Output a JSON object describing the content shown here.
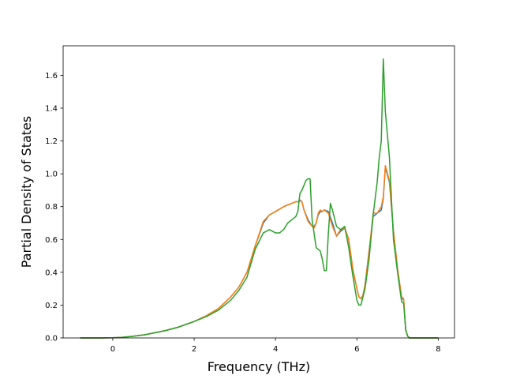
{
  "chart_data": {
    "type": "line",
    "xlabel": "Frequency (THz)",
    "ylabel": "Partial Density of States",
    "xlim": [
      -1.22,
      8.4
    ],
    "ylim": [
      0.0,
      1.78
    ],
    "xticks": [
      0,
      2,
      4,
      6,
      8
    ],
    "yticks": [
      0.0,
      0.2,
      0.4,
      0.6,
      0.8,
      1.0,
      1.2,
      1.4,
      1.6
    ],
    "xtick_labels": [
      "0",
      "2",
      "4",
      "6",
      "8"
    ],
    "ytick_labels": [
      "0.0",
      "0.2",
      "0.4",
      "0.6",
      "0.8",
      "1.0",
      "1.2",
      "1.4",
      "1.6"
    ],
    "grid": false,
    "series": [
      {
        "color": "#1f77b4",
        "x": [
          -0.8,
          -0.4,
          0.0,
          0.2,
          0.5,
          0.8,
          1.0,
          1.3,
          1.6,
          2.0,
          2.3,
          2.6,
          2.9,
          3.1,
          3.3,
          3.5,
          3.7,
          3.85,
          4.0,
          4.2,
          4.3,
          4.4,
          4.5,
          4.55,
          4.6,
          4.65,
          4.7,
          4.8,
          4.9,
          4.95,
          5.0,
          5.05,
          5.1,
          5.15,
          5.2,
          5.3,
          5.4,
          5.5,
          5.6,
          5.7,
          5.8,
          5.9,
          6.0,
          6.05,
          6.1,
          6.15,
          6.2,
          6.3,
          6.4,
          6.5,
          6.6,
          6.65,
          6.7,
          6.8,
          6.9,
          7.0,
          7.1,
          7.15,
          7.2,
          7.25,
          7.3,
          7.5,
          8.0
        ],
        "y": [
          0.0,
          0.0,
          0.001,
          0.003,
          0.01,
          0.02,
          0.03,
          0.045,
          0.065,
          0.1,
          0.135,
          0.18,
          0.25,
          0.31,
          0.4,
          0.56,
          0.7,
          0.75,
          0.77,
          0.8,
          0.81,
          0.82,
          0.83,
          0.83,
          0.84,
          0.83,
          0.78,
          0.72,
          0.68,
          0.68,
          0.7,
          0.75,
          0.77,
          0.77,
          0.78,
          0.77,
          0.7,
          0.62,
          0.65,
          0.67,
          0.6,
          0.42,
          0.3,
          0.25,
          0.24,
          0.26,
          0.32,
          0.53,
          0.74,
          0.76,
          0.78,
          0.85,
          1.04,
          0.95,
          0.65,
          0.42,
          0.25,
          0.23,
          0.05,
          0.01,
          0.0,
          0.0,
          0.0
        ]
      },
      {
        "color": "#ff7f0e",
        "x": [
          -0.8,
          -0.4,
          0.0,
          0.2,
          0.5,
          0.8,
          1.0,
          1.3,
          1.6,
          2.0,
          2.3,
          2.6,
          2.9,
          3.1,
          3.3,
          3.5,
          3.7,
          3.85,
          4.0,
          4.2,
          4.3,
          4.4,
          4.5,
          4.55,
          4.6,
          4.65,
          4.7,
          4.8,
          4.9,
          4.95,
          5.0,
          5.05,
          5.1,
          5.15,
          5.2,
          5.3,
          5.4,
          5.5,
          5.6,
          5.7,
          5.8,
          5.9,
          6.0,
          6.05,
          6.1,
          6.15,
          6.2,
          6.3,
          6.4,
          6.5,
          6.6,
          6.65,
          6.7,
          6.8,
          6.9,
          7.0,
          7.1,
          7.15,
          7.2,
          7.25,
          7.3,
          7.5,
          8.0
        ],
        "y": [
          0.0,
          0.0,
          0.001,
          0.003,
          0.01,
          0.02,
          0.03,
          0.045,
          0.065,
          0.1,
          0.135,
          0.18,
          0.25,
          0.31,
          0.4,
          0.56,
          0.71,
          0.75,
          0.77,
          0.8,
          0.81,
          0.82,
          0.83,
          0.83,
          0.835,
          0.83,
          0.78,
          0.71,
          0.68,
          0.67,
          0.7,
          0.76,
          0.78,
          0.77,
          0.78,
          0.76,
          0.68,
          0.62,
          0.66,
          0.67,
          0.6,
          0.42,
          0.3,
          0.25,
          0.24,
          0.26,
          0.32,
          0.52,
          0.76,
          0.76,
          0.8,
          0.86,
          1.05,
          0.96,
          0.65,
          0.42,
          0.25,
          0.24,
          0.05,
          0.01,
          0.0,
          0.0,
          0.0
        ]
      },
      {
        "color": "#2ca02c",
        "x": [
          -0.8,
          -0.4,
          0.0,
          0.2,
          0.5,
          0.8,
          1.0,
          1.3,
          1.6,
          2.0,
          2.3,
          2.6,
          2.9,
          3.1,
          3.3,
          3.5,
          3.6,
          3.7,
          3.85,
          4.0,
          4.1,
          4.2,
          4.3,
          4.4,
          4.5,
          4.55,
          4.6,
          4.65,
          4.7,
          4.75,
          4.8,
          4.85,
          4.9,
          5.0,
          5.1,
          5.15,
          5.2,
          5.25,
          5.3,
          5.35,
          5.4,
          5.5,
          5.6,
          5.7,
          5.8,
          5.9,
          6.0,
          6.05,
          6.1,
          6.2,
          6.3,
          6.4,
          6.5,
          6.55,
          6.6,
          6.65,
          6.7,
          6.8,
          6.9,
          7.0,
          7.1,
          7.15,
          7.2,
          7.25,
          7.3,
          7.5,
          8.0
        ],
        "y": [
          0.0,
          0.0,
          0.001,
          0.003,
          0.01,
          0.02,
          0.03,
          0.045,
          0.065,
          0.1,
          0.13,
          0.17,
          0.23,
          0.29,
          0.37,
          0.54,
          0.59,
          0.64,
          0.66,
          0.64,
          0.64,
          0.66,
          0.7,
          0.72,
          0.74,
          0.77,
          0.88,
          0.9,
          0.93,
          0.96,
          0.97,
          0.97,
          0.72,
          0.55,
          0.53,
          0.48,
          0.41,
          0.41,
          0.64,
          0.82,
          0.78,
          0.68,
          0.66,
          0.68,
          0.55,
          0.38,
          0.23,
          0.2,
          0.2,
          0.3,
          0.48,
          0.75,
          0.95,
          1.1,
          1.2,
          1.7,
          1.38,
          1.1,
          0.6,
          0.4,
          0.22,
          0.21,
          0.05,
          0.01,
          0.0,
          0.0,
          0.0
        ]
      }
    ]
  }
}
